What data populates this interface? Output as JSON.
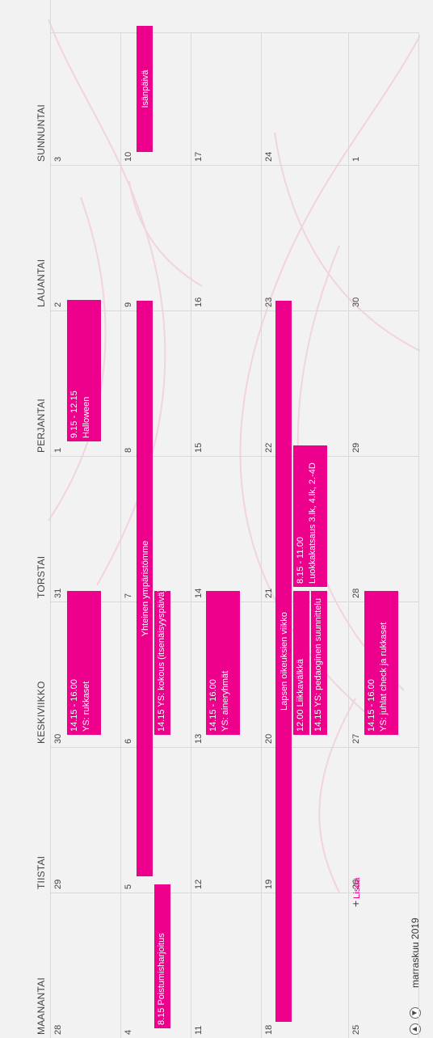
{
  "header": {
    "month_title": "marraskuu 2019",
    "prev_icon": "arrow-up-icon",
    "next_icon": "arrow-down-icon"
  },
  "weekdays": [
    "MAANANTAI",
    "TIISTAI",
    "KESKIVIIKKO",
    "TORSTAI",
    "PERJANTAI",
    "LAUANTAI",
    "SUNNUNTAI"
  ],
  "weeks": [
    [
      "28",
      "29",
      "30",
      "31",
      "1",
      "2",
      "3"
    ],
    [
      "4",
      "5",
      "6",
      "7",
      "8",
      "9",
      "10"
    ],
    [
      "11",
      "12",
      "13",
      "14",
      "15",
      "16",
      "17"
    ],
    [
      "18",
      "19",
      "20",
      "21",
      "22",
      "23",
      "24"
    ],
    [
      "25",
      "26",
      "27",
      "28",
      "29",
      "30",
      "1"
    ]
  ],
  "events": {
    "w1_wed_line1": "14.15 - 16.00",
    "w1_wed_line2": "YS: rukkaset",
    "w1_fri_line1": "9.15 - 12.15",
    "w1_fri_line2": "Halloween",
    "w2_span_title": "Yhteinen ympäristömme",
    "w2_mon": "8.15 Poistumisharjoitus",
    "w2_wed": "14.15 YS: kokous (itsenäisyyspäivä)",
    "w2_sun": "Isänpäivä",
    "w3_wed_line1": "14.15 - 16.00",
    "w3_wed_line2": "YS: aineryhmät",
    "w4_span_title": "Lapsen oikeuksien viikko",
    "w4_wed_line1": "12.00 Liikkavälkkä",
    "w4_wed_line2": "14.15 YS: pedaoginen suunnittelu",
    "w4_thu_line1": "8.15 - 11.00",
    "w4_thu_line2": "Luokkakatsaus 3.lk, 4.lk, 2.-4D",
    "w5_wed_line1": "14.15 - 16.00",
    "w5_wed_line2": "YS: juhlat check ja rukkaset"
  },
  "add_more_label": "Lisää",
  "colors": {
    "accent": "#ec008c",
    "background": "#f2f2f2",
    "grid_line": "#d9d9d9"
  }
}
